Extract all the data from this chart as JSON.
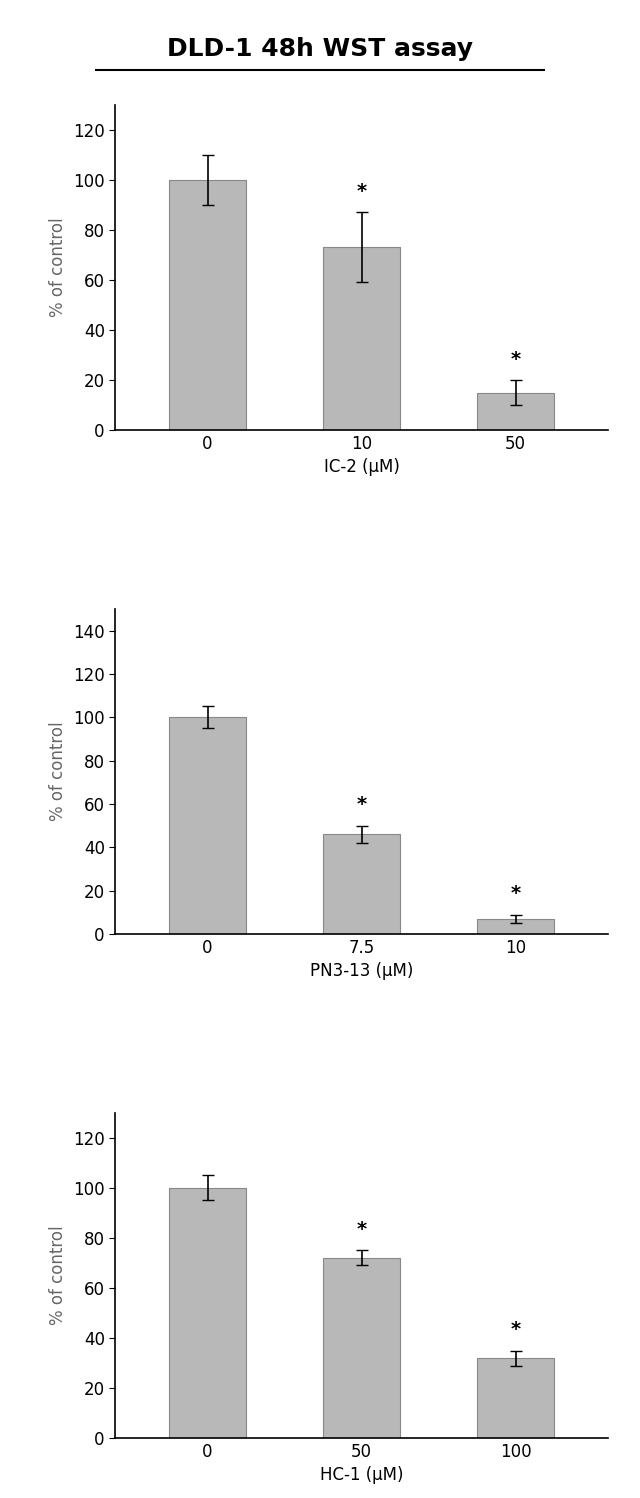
{
  "title": "DLD-1 48h WST assay",
  "title_fontsize": 18,
  "bar_color": "#b8b8b8",
  "bar_edgecolor": "#888888",
  "background_color": "#ffffff",
  "ylabel": "% of control",
  "ylabel_fontsize": 12,
  "tick_fontsize": 12,
  "xlabel_fontsize": 12,
  "chart1": {
    "values": [
      100,
      73,
      15
    ],
    "errors": [
      10,
      14,
      5
    ],
    "categories": [
      "0",
      "10",
      "50"
    ],
    "xlabel": "IC-2 (μM)",
    "ylim": [
      0,
      130
    ],
    "yticks": [
      0,
      20,
      40,
      60,
      80,
      100,
      120
    ],
    "sig": [
      false,
      true,
      true
    ]
  },
  "chart2": {
    "values": [
      100,
      46,
      7
    ],
    "errors": [
      5,
      4,
      2
    ],
    "categories": [
      "0",
      "7.5",
      "10"
    ],
    "xlabel": "PN3-13 (μM)",
    "ylim": [
      0,
      150
    ],
    "yticks": [
      0,
      20,
      40,
      60,
      80,
      100,
      120,
      140
    ],
    "sig": [
      false,
      true,
      true
    ]
  },
  "chart3": {
    "values": [
      100,
      72,
      32
    ],
    "errors": [
      5,
      3,
      3
    ],
    "categories": [
      "0",
      "50",
      "100"
    ],
    "xlabel": "HC-1 (μM)",
    "ylim": [
      0,
      130
    ],
    "yticks": [
      0,
      20,
      40,
      60,
      80,
      100,
      120
    ],
    "sig": [
      false,
      true,
      true
    ]
  }
}
